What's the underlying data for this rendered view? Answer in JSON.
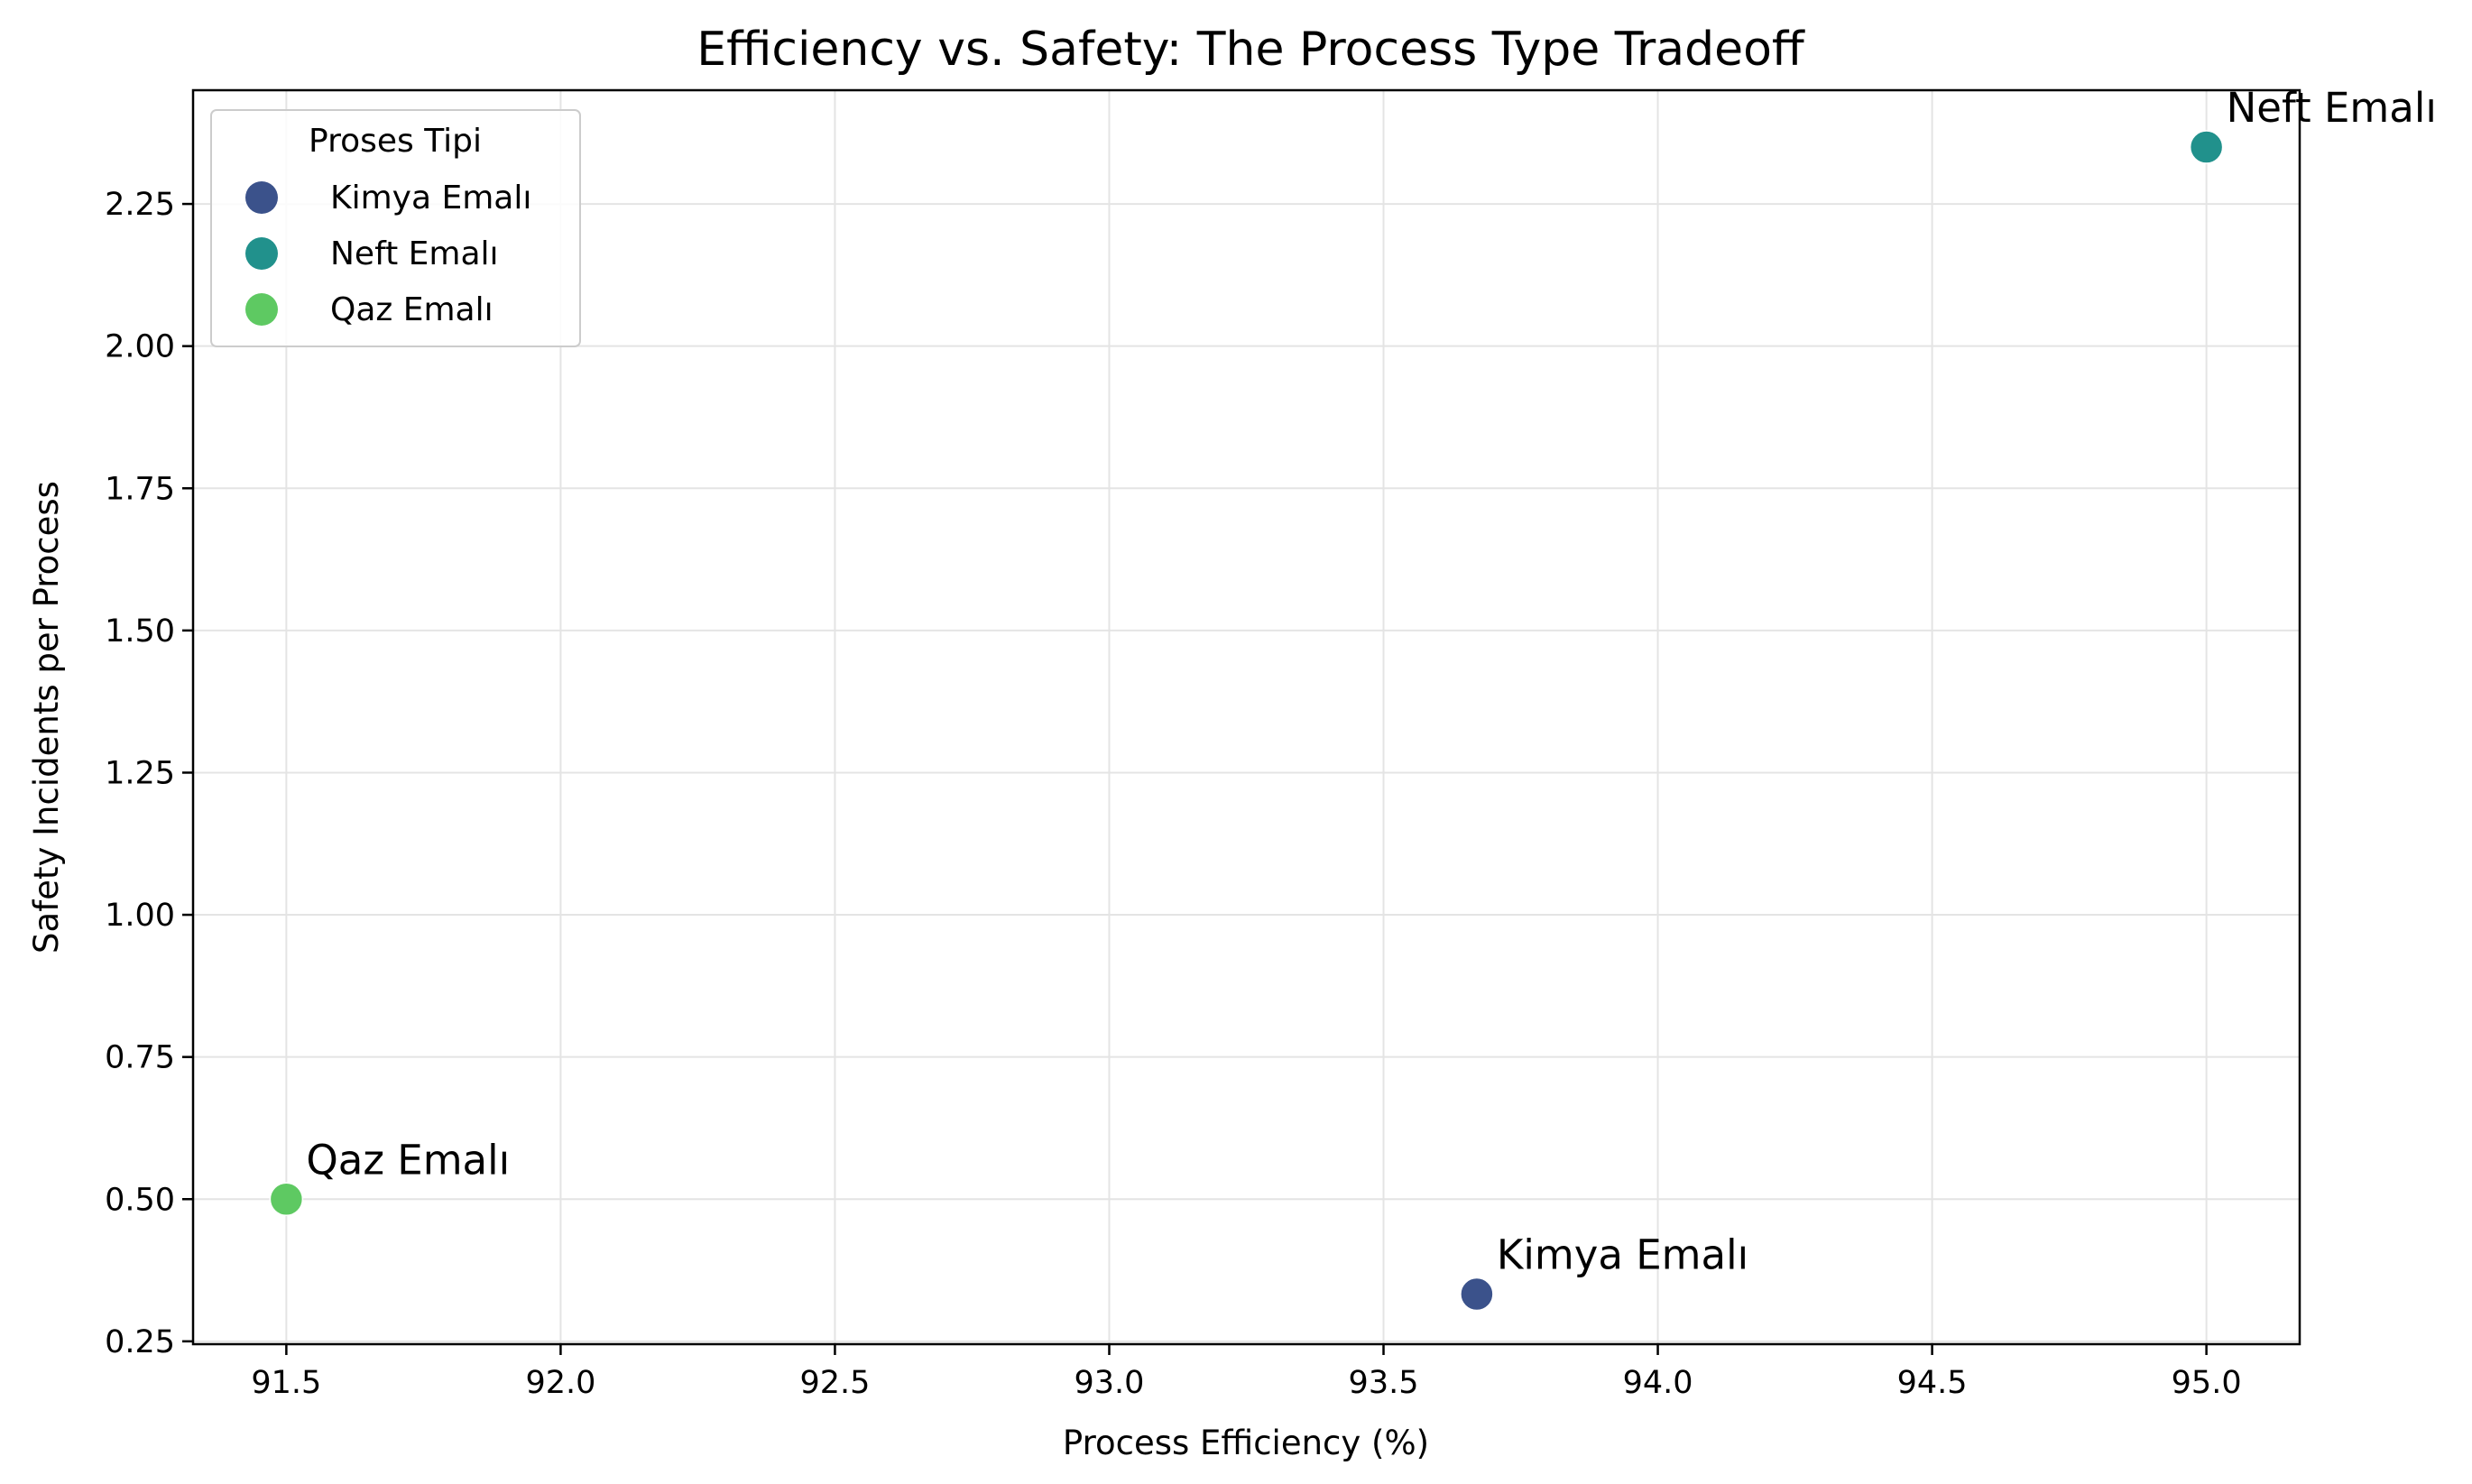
{
  "chart_data": {
    "type": "scatter",
    "title": "Efficiency vs. Safety: The Process Type Tradeoff",
    "xlabel": "Process Efficiency (%)",
    "ylabel": "Safety Incidents per Process",
    "xlim": [
      91.33,
      95.17
    ],
    "ylim": [
      0.245,
      2.45
    ],
    "xticks": [
      91.5,
      92.0,
      92.5,
      93.0,
      93.5,
      94.0,
      94.5,
      95.0
    ],
    "xtick_labels": [
      "91.5",
      "92.0",
      "92.5",
      "93.0",
      "93.5",
      "94.0",
      "94.5",
      "95.0"
    ],
    "yticks": [
      0.25,
      0.5,
      0.75,
      1.0,
      1.25,
      1.5,
      1.75,
      2.0,
      2.25
    ],
    "ytick_labels": [
      "0.25",
      "0.50",
      "0.75",
      "1.00",
      "1.25",
      "1.50",
      "1.75",
      "2.00",
      "2.25"
    ],
    "grid": true,
    "legend": {
      "title": "Proses Tipi",
      "placement": "top-left"
    },
    "series": [
      {
        "name": "Kimya Emalı",
        "color": "#3b528b",
        "x": [
          93.67
        ],
        "y": [
          0.333
        ],
        "label": "Kimya Emalı"
      },
      {
        "name": "Neft Emalı",
        "color": "#21918c",
        "x": [
          95.0
        ],
        "y": [
          2.35
        ],
        "label": "Neft Emalı"
      },
      {
        "name": "Qaz Emalı",
        "color": "#5ec962",
        "x": [
          91.5
        ],
        "y": [
          0.5
        ],
        "label": "Qaz Emalı"
      }
    ]
  }
}
